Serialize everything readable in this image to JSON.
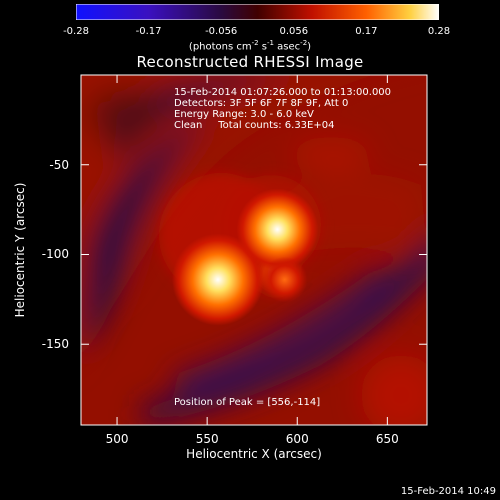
{
  "colorbar": {
    "ticks": [
      "-0.28",
      "-0.17",
      "-0.056",
      "0.056",
      "0.17",
      "0.28"
    ],
    "units_text": "(photons cm",
    "units_exp1": "-2",
    "units_mid": " s",
    "units_exp2": "-1",
    "units_mid2": " asec",
    "units_exp3": "-2",
    "units_end": ")"
  },
  "info": {
    "line1": "15-Feb-2014 01:07:26.000 to 01:13:00.000",
    "line2": "Detectors: 3F 5F 6F 7F 8F 9F, Att 0",
    "line3": "Energy Range: 3.0 - 6.0 keV",
    "line4": "Clean     Total counts: 6.33E+04",
    "peak": "Position of Peak = [556,-114]"
  },
  "timestamp": "15-Feb-2014 10:49",
  "chart_data": {
    "type": "heatmap",
    "title": "Reconstructed RHESSI Image",
    "xlabel": "Heliocentric X (arcsec)",
    "ylabel": "Heliocentric Y (arcsec)",
    "xlim": [
      480,
      672
    ],
    "ylim": [
      -195,
      0
    ],
    "xticks": [
      "500",
      "550",
      "600",
      "650"
    ],
    "yticks": [
      "-50",
      "-100",
      "-150"
    ],
    "ytick_values": [
      -50,
      -100,
      -150
    ],
    "xtick_values": [
      500,
      550,
      600,
      650
    ],
    "clim": [
      -0.28,
      0.28
    ],
    "colormap": "rhessi-blue-purple-red-yellow-white",
    "sources": [
      {
        "x": 556,
        "y": -114,
        "peak": 0.28
      },
      {
        "x": 589,
        "y": -86,
        "peak": 0.24
      },
      {
        "x": 593,
        "y": -114,
        "peak": 0.1
      }
    ],
    "peak_position": [
      556,
      -114
    ]
  }
}
